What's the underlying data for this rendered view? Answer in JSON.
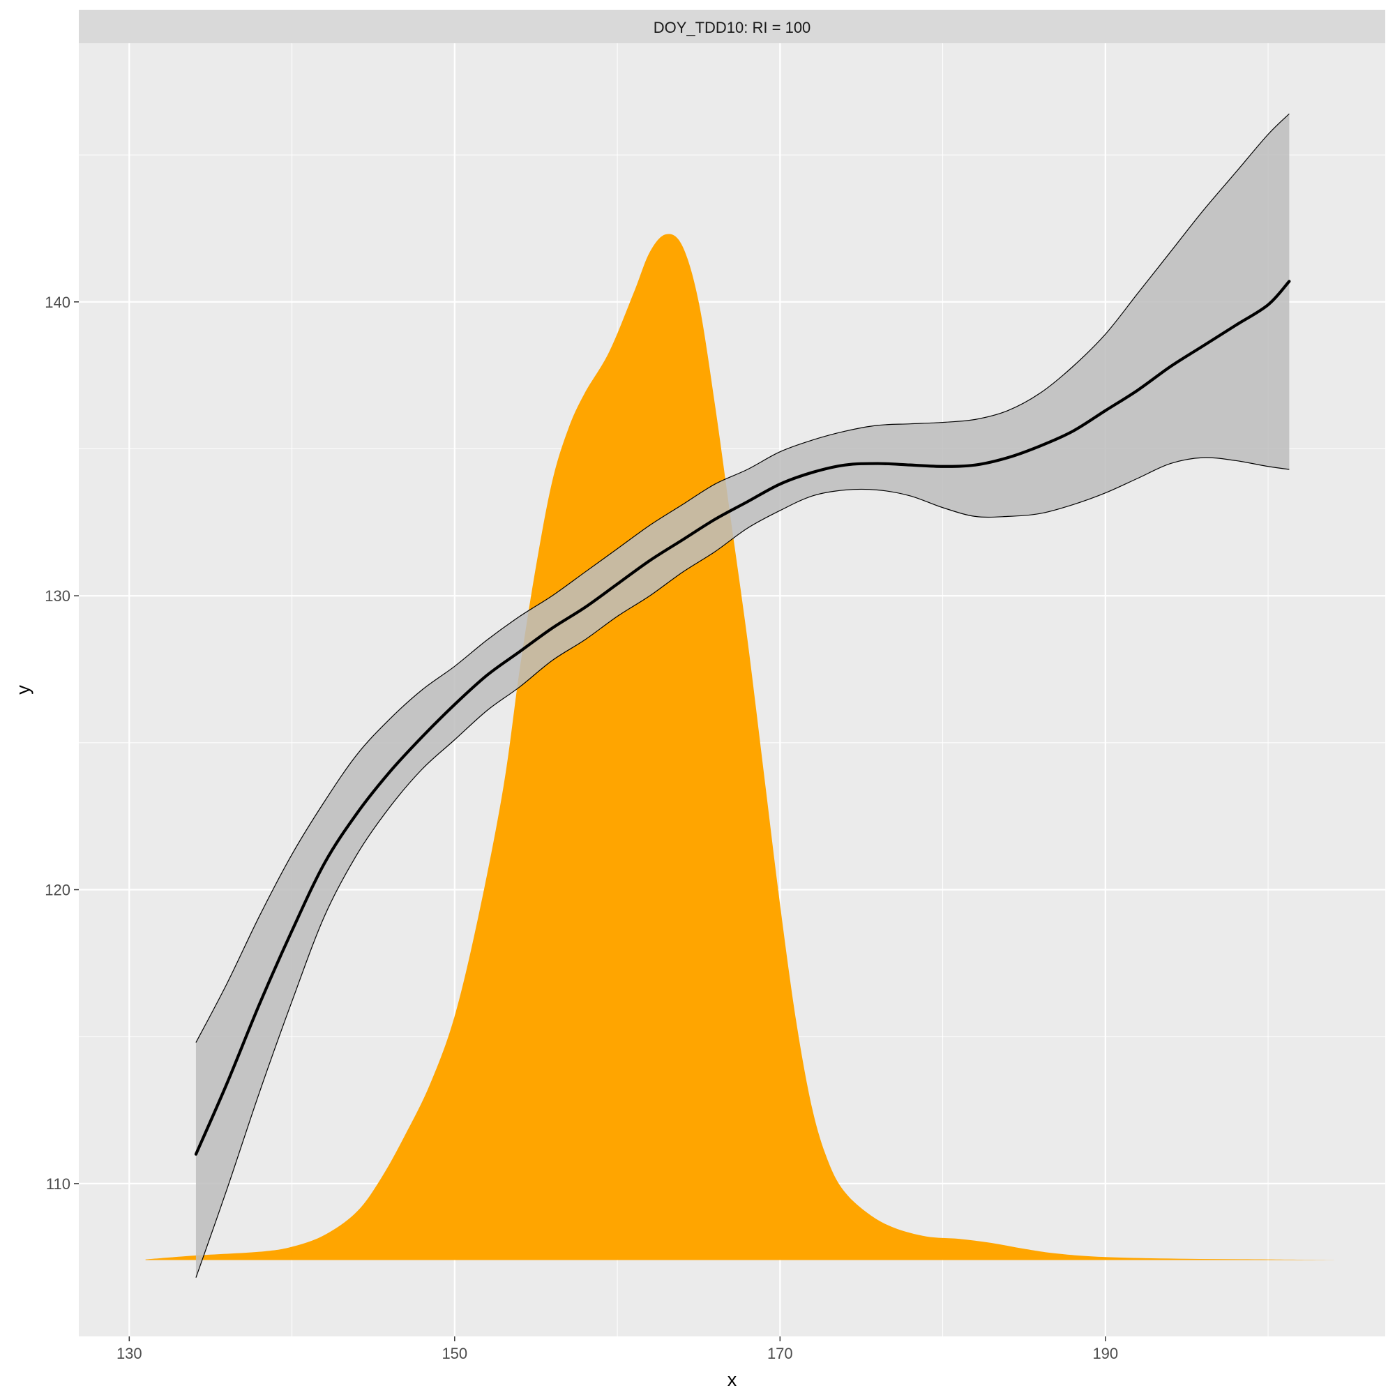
{
  "chart_data": {
    "type": "line",
    "facet_title": "DOY_TDD10: RI = 100",
    "xlabel": "x",
    "ylabel": "y",
    "xlim": [
      126.9,
      207.2
    ],
    "ylim": [
      104.8,
      148.8
    ],
    "x_breaks": [
      130,
      150,
      170,
      190
    ],
    "x_minor_breaks": [
      140,
      160,
      180,
      200
    ],
    "y_breaks": [
      110,
      120,
      130,
      140
    ],
    "y_minor_breaks": [
      115,
      125,
      135,
      145
    ],
    "grid": true,
    "colors": {
      "panel_bg": "#ebebeb",
      "grid": "#ffffff",
      "strip_bg": "#d9d9d9",
      "density_fill": "#ffa500",
      "ribbon_fill": "#bdbdbd",
      "line": "#000000"
    },
    "density": {
      "baseline": 107.4,
      "points": [
        [
          131.0,
          107.42
        ],
        [
          134.0,
          107.55
        ],
        [
          138.0,
          107.68
        ],
        [
          140.0,
          107.85
        ],
        [
          142.0,
          108.25
        ],
        [
          144.0,
          109.05
        ],
        [
          145.5,
          110.2
        ],
        [
          147.0,
          111.7
        ],
        [
          148.5,
          113.4
        ],
        [
          150.0,
          115.7
        ],
        [
          151.5,
          119.2
        ],
        [
          153.0,
          123.5
        ],
        [
          154.0,
          127.5
        ],
        [
          155.0,
          131.0
        ],
        [
          156.0,
          133.9
        ],
        [
          157.0,
          135.7
        ],
        [
          158.0,
          136.9
        ],
        [
          159.5,
          138.3
        ],
        [
          161.0,
          140.3
        ],
        [
          162.0,
          141.7
        ],
        [
          163.0,
          142.3
        ],
        [
          164.0,
          141.9
        ],
        [
          165.0,
          140.0
        ],
        [
          166.0,
          136.5
        ],
        [
          167.0,
          132.5
        ],
        [
          168.0,
          128.5
        ],
        [
          169.0,
          124.0
        ],
        [
          170.0,
          119.5
        ],
        [
          171.0,
          115.5
        ],
        [
          172.0,
          112.5
        ],
        [
          173.0,
          110.7
        ],
        [
          174.0,
          109.7
        ],
        [
          175.5,
          108.95
        ],
        [
          177.0,
          108.5
        ],
        [
          179.0,
          108.2
        ],
        [
          181.0,
          108.12
        ],
        [
          183.0,
          107.98
        ],
        [
          185.0,
          107.78
        ],
        [
          187.0,
          107.62
        ],
        [
          190.0,
          107.5
        ],
        [
          195.0,
          107.44
        ],
        [
          200.0,
          107.42
        ],
        [
          204.2,
          107.4
        ]
      ]
    },
    "smooth": {
      "x": [
        134.1,
        136.0,
        138.0,
        140.0,
        142.0,
        144.0,
        146.0,
        148.0,
        150.0,
        152.0,
        154.0,
        156.0,
        158.0,
        160.0,
        162.0,
        164.0,
        166.0,
        168.0,
        170.0,
        172.0,
        174.0,
        176.0,
        178.0,
        180.0,
        182.0,
        184.0,
        186.0,
        188.0,
        190.0,
        192.0,
        194.0,
        196.0,
        198.0,
        200.0,
        201.3
      ],
      "fit": [
        111.0,
        113.4,
        116.1,
        118.6,
        120.9,
        122.6,
        124.0,
        125.2,
        126.3,
        127.3,
        128.1,
        128.9,
        129.6,
        130.4,
        131.2,
        131.9,
        132.6,
        133.2,
        133.8,
        134.2,
        134.45,
        134.5,
        134.45,
        134.4,
        134.45,
        134.7,
        135.1,
        135.6,
        136.3,
        137.0,
        137.8,
        138.5,
        139.2,
        139.9,
        140.7
      ],
      "lower": [
        106.8,
        109.8,
        113.1,
        116.2,
        119.1,
        121.2,
        122.8,
        124.1,
        125.1,
        126.1,
        126.9,
        127.8,
        128.5,
        129.3,
        130.0,
        130.8,
        131.5,
        132.3,
        132.9,
        133.4,
        133.6,
        133.6,
        133.4,
        133.0,
        132.7,
        132.7,
        132.8,
        133.1,
        133.5,
        134.0,
        134.5,
        134.7,
        134.6,
        134.4,
        134.3
      ],
      "upper": [
        114.8,
        116.8,
        119.1,
        121.2,
        123.0,
        124.6,
        125.8,
        126.8,
        127.6,
        128.5,
        129.3,
        130.0,
        130.8,
        131.6,
        132.4,
        133.1,
        133.8,
        134.3,
        134.9,
        135.3,
        135.6,
        135.8,
        135.85,
        135.9,
        136.0,
        136.3,
        136.9,
        137.8,
        138.9,
        140.3,
        141.7,
        143.1,
        144.4,
        145.7,
        146.4
      ]
    }
  }
}
